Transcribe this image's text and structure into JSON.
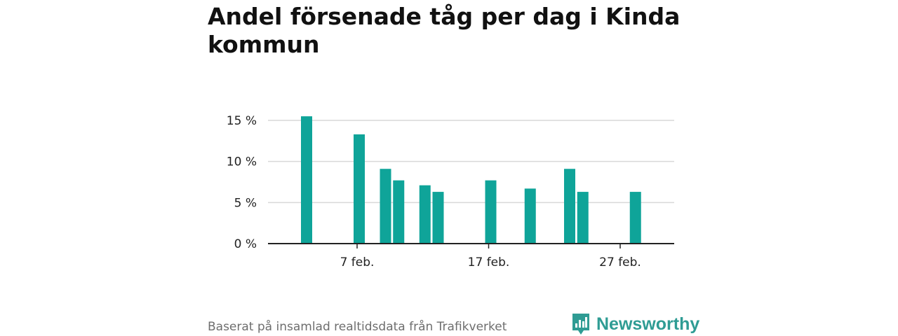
{
  "title": "Andel försenade tåg per dag i Kinda kommun",
  "footer": {
    "source": "Baserat på insamlad realtidsdata från Trafikverket",
    "brand": "Newsworthy",
    "brand_icon": "newsworthy-logo-icon",
    "brand_color": "#2f9c94"
  },
  "chart_data": {
    "type": "bar",
    "x_type": "date",
    "x": [
      "2024-02-03",
      "2024-02-05",
      "2024-02-07",
      "2024-02-08",
      "2024-02-09",
      "2024-02-10",
      "2024-02-11",
      "2024-02-12",
      "2024-02-13",
      "2024-02-14",
      "2024-02-15",
      "2024-02-16",
      "2024-02-17",
      "2024-02-18",
      "2024-02-19",
      "2024-02-20",
      "2024-02-21",
      "2024-02-22",
      "2024-02-23",
      "2024-02-24",
      "2024-02-25",
      "2024-02-26",
      "2024-02-27",
      "2024-02-28"
    ],
    "values": [
      15.5,
      0,
      13.3,
      0,
      9.1,
      7.7,
      0,
      7.1,
      6.3,
      0,
      0,
      0,
      7.7,
      0,
      0,
      6.7,
      0,
      0,
      9.1,
      6.3,
      0,
      0,
      0,
      6.3
    ],
    "x_ticks": [
      "7 feb.",
      "17 feb.",
      "27 feb."
    ],
    "y_ticks": [
      "0 %",
      "5 %",
      "10 %",
      "15 %"
    ],
    "ylim": [
      0,
      15
    ],
    "bar_color": "#0fa499",
    "grid": true
  }
}
